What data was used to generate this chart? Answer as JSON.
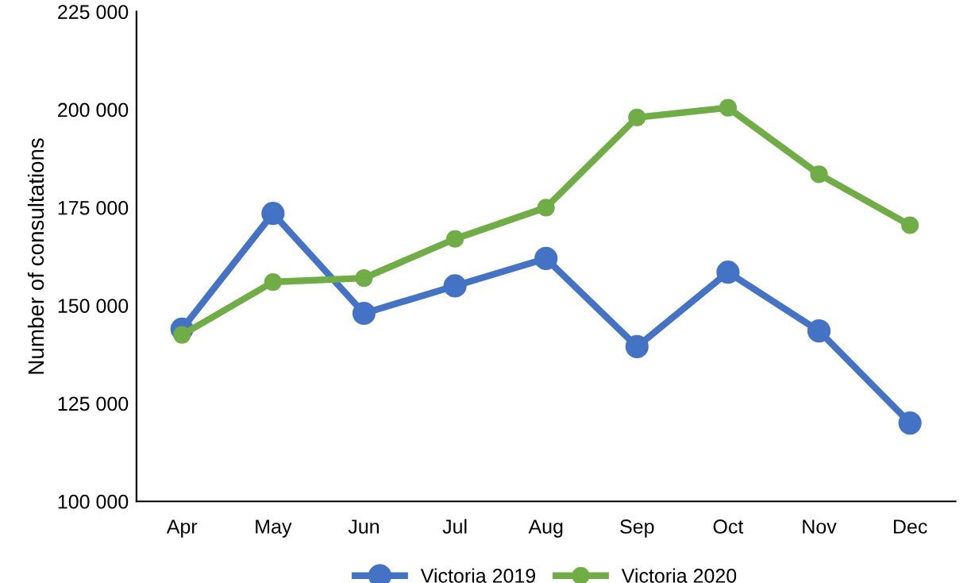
{
  "chart_data": {
    "type": "line",
    "ylabel": "Number of consultations",
    "categories": [
      "Apr",
      "May",
      "Jun",
      "Jul",
      "Aug",
      "Sep",
      "Oct",
      "Nov",
      "Dec"
    ],
    "series": [
      {
        "name": "Victoria 2019",
        "color": "#4472c4",
        "values": [
          144000,
          173500,
          148000,
          155000,
          162000,
          139500,
          158500,
          143500,
          120000
        ]
      },
      {
        "name": "Victoria 2020",
        "color": "#70ad47",
        "values": [
          142500,
          156000,
          157000,
          167000,
          175000,
          198000,
          200500,
          183500,
          170500
        ]
      }
    ],
    "ylim": [
      100000,
      225000
    ],
    "yticks": [
      {
        "value": 100000,
        "label": "100 000"
      },
      {
        "value": 125000,
        "label": "125 000"
      },
      {
        "value": 150000,
        "label": "150 000"
      },
      {
        "value": 175000,
        "label": "175 000"
      },
      {
        "value": 200000,
        "label": "200 000"
      },
      {
        "value": 225000,
        "label": "225 000"
      }
    ],
    "grid": false,
    "legend": "bottom",
    "marker": "circle",
    "line_style": "solid"
  }
}
